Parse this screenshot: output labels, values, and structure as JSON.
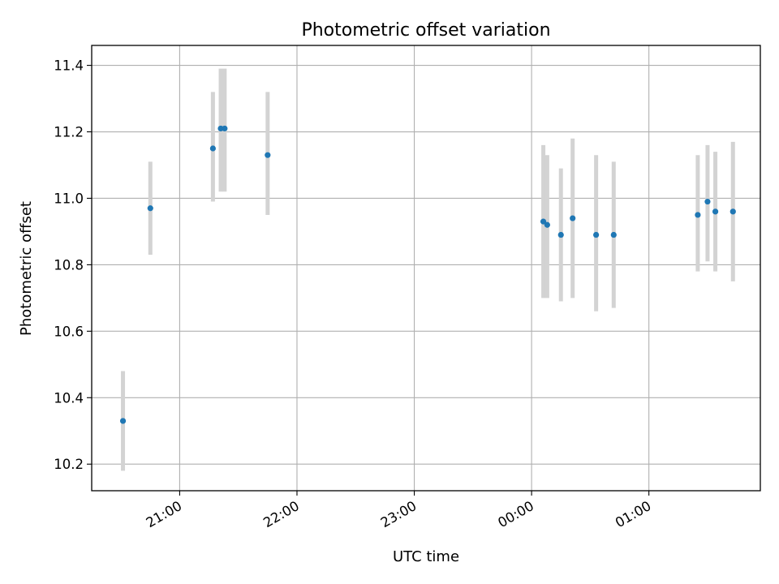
{
  "chart_data": {
    "type": "scatter",
    "title": "Photometric offset variation",
    "xlabel": "UTC time",
    "ylabel": "Photometric offset",
    "x_unit": "UTC time (HH:MM, night spanning midnight)",
    "xlim": [
      "20:15",
      "01:57"
    ],
    "ylim": [
      10.12,
      11.46
    ],
    "grid": true,
    "legend": "none",
    "colors": {
      "point": "#1f77b4",
      "errorbar": "#d3d3d3",
      "grid": "#b0b0b0"
    },
    "x_ticks": [
      {
        "time": "21:00",
        "label": "21:00"
      },
      {
        "time": "22:00",
        "label": "22:00"
      },
      {
        "time": "23:00",
        "label": "23:00"
      },
      {
        "time": "00:00",
        "label": "00:00"
      },
      {
        "time": "01:00",
        "label": "01:00"
      }
    ],
    "y_ticks": [
      {
        "value": 10.2,
        "label": "10.2"
      },
      {
        "value": 10.4,
        "label": "10.4"
      },
      {
        "value": 10.6,
        "label": "10.6"
      },
      {
        "value": 10.8,
        "label": "10.8"
      },
      {
        "value": 11.0,
        "label": "11.0"
      },
      {
        "value": 11.2,
        "label": "11.2"
      },
      {
        "value": 11.4,
        "label": "11.4"
      }
    ],
    "points": [
      {
        "time": "20:31",
        "y": 10.33,
        "ylow": 10.18,
        "yhigh": 10.48
      },
      {
        "time": "20:45",
        "y": 10.97,
        "ylow": 10.83,
        "yhigh": 11.11
      },
      {
        "time": "21:17",
        "y": 11.15,
        "ylow": 10.99,
        "yhigh": 11.32
      },
      {
        "time": "21:21",
        "y": 11.21,
        "ylow": 11.02,
        "yhigh": 11.39
      },
      {
        "time": "21:23",
        "y": 11.21,
        "ylow": 11.02,
        "yhigh": 11.39
      },
      {
        "time": "21:45",
        "y": 11.13,
        "ylow": 10.95,
        "yhigh": 11.32
      },
      {
        "time": "00:06",
        "y": 10.93,
        "ylow": 10.7,
        "yhigh": 11.16
      },
      {
        "time": "00:08",
        "y": 10.92,
        "ylow": 10.7,
        "yhigh": 11.13
      },
      {
        "time": "00:15",
        "y": 10.89,
        "ylow": 10.69,
        "yhigh": 11.09
      },
      {
        "time": "00:21",
        "y": 10.94,
        "ylow": 10.7,
        "yhigh": 11.18
      },
      {
        "time": "00:33",
        "y": 10.89,
        "ylow": 10.66,
        "yhigh": 11.13
      },
      {
        "time": "00:42",
        "y": 10.89,
        "ylow": 10.67,
        "yhigh": 11.11
      },
      {
        "time": "01:25",
        "y": 10.95,
        "ylow": 10.78,
        "yhigh": 11.13
      },
      {
        "time": "01:30",
        "y": 10.99,
        "ylow": 10.81,
        "yhigh": 11.16
      },
      {
        "time": "01:34",
        "y": 10.96,
        "ylow": 10.78,
        "yhigh": 11.14
      },
      {
        "time": "01:43",
        "y": 10.96,
        "ylow": 10.75,
        "yhigh": 11.17
      }
    ]
  }
}
